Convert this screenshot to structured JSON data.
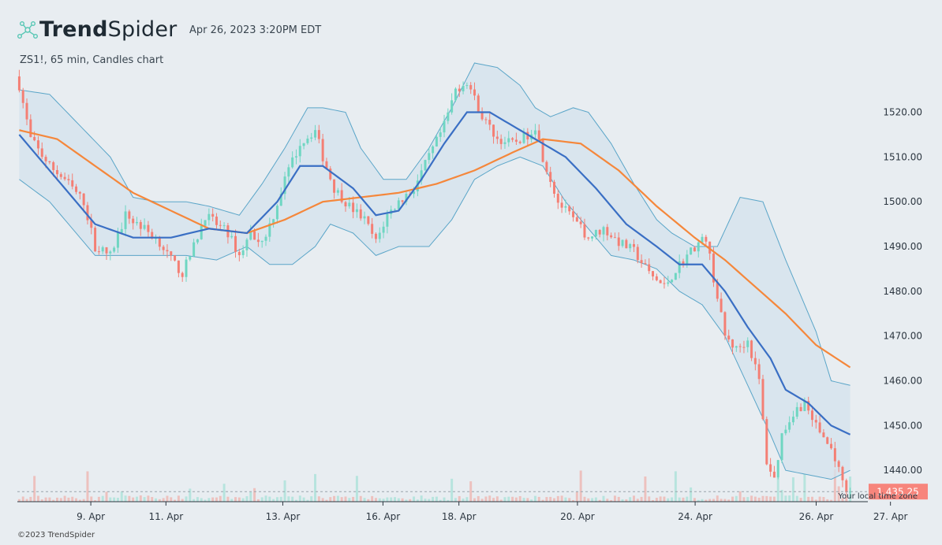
{
  "header": {
    "brand_bold": "Trend",
    "brand_regular": "Spider",
    "datetime": "Apr 26, 2023 3:20PM EDT",
    "symbol_line": "ZS1!, 65 min, Candles chart"
  },
  "footer": {
    "copyright": "©2023 TrendSpider"
  },
  "chart_data": {
    "type": "candlestick",
    "title": "ZS1!, 65 min, Candles chart",
    "x_tick_labels": [
      "9. Apr",
      "11. Apr",
      "13. Apr",
      "16. Apr",
      "18. Apr",
      "20. Apr",
      "24. Apr",
      "26. Apr",
      "27. Apr"
    ],
    "y_tick_labels": [
      "1520.00",
      "1510.00",
      "1500.00",
      "1490.00",
      "1480.00",
      "1470.00",
      "1460.00",
      "1450.00",
      "1440.00"
    ],
    "y_ticks": [
      1520,
      1510,
      1500,
      1490,
      1480,
      1470,
      1460,
      1450,
      1440
    ],
    "ylim": [
      1433,
      1531
    ],
    "last_price": 1435.25,
    "last_price_label": "1,435.25",
    "timezone_note": "Your local time zone",
    "colors": {
      "up": "#6fd6c2",
      "down": "#f47f74",
      "ma_fast": "#3a6fc4",
      "ma_slow": "#f5873b",
      "band": "#5aa5c8",
      "band_fill": "#d4e2ec",
      "price_tag": "#f7857c"
    },
    "close_path": [
      [
        0,
        1526
      ],
      [
        3,
        1514
      ],
      [
        8,
        1508
      ],
      [
        12,
        1505
      ],
      [
        17,
        1500
      ],
      [
        20,
        1490
      ],
      [
        24,
        1488
      ],
      [
        28,
        1497
      ],
      [
        33,
        1494
      ],
      [
        37,
        1491
      ],
      [
        40,
        1487
      ],
      [
        43,
        1484
      ],
      [
        46,
        1490
      ],
      [
        49,
        1497
      ],
      [
        52,
        1495
      ],
      [
        55,
        1493
      ],
      [
        58,
        1488
      ],
      [
        61,
        1493
      ],
      [
        64,
        1491
      ],
      [
        67,
        1497
      ],
      [
        70,
        1505
      ],
      [
        74,
        1513
      ],
      [
        78,
        1516
      ],
      [
        80,
        1510
      ],
      [
        83,
        1503
      ],
      [
        87,
        1499
      ],
      [
        91,
        1496
      ],
      [
        94,
        1491
      ],
      [
        97,
        1497
      ],
      [
        100,
        1500
      ],
      [
        104,
        1503
      ],
      [
        108,
        1510
      ],
      [
        112,
        1517
      ],
      [
        115,
        1525
      ],
      [
        118,
        1527
      ],
      [
        122,
        1519
      ],
      [
        126,
        1514
      ],
      [
        130,
        1513
      ],
      [
        134,
        1515
      ],
      [
        136,
        1517
      ],
      [
        138,
        1510
      ],
      [
        142,
        1500
      ],
      [
        146,
        1496
      ],
      [
        150,
        1492
      ],
      [
        154,
        1494
      ],
      [
        158,
        1491
      ],
      [
        162,
        1489
      ],
      [
        166,
        1484
      ],
      [
        170,
        1481
      ],
      [
        174,
        1486
      ],
      [
        178,
        1490
      ],
      [
        181,
        1492
      ],
      [
        183,
        1483
      ],
      [
        186,
        1470
      ],
      [
        189,
        1467
      ],
      [
        192,
        1469
      ],
      [
        195,
        1460
      ],
      [
        197,
        1442
      ],
      [
        199,
        1438
      ],
      [
        201,
        1448
      ],
      [
        204,
        1453
      ],
      [
        207,
        1455
      ],
      [
        210,
        1450
      ],
      [
        213,
        1446
      ],
      [
        215,
        1443
      ],
      [
        217,
        1437
      ],
      [
        219,
        1435.25
      ]
    ],
    "ma_fast_path": [
      [
        0,
        1515
      ],
      [
        10,
        1505
      ],
      [
        20,
        1495
      ],
      [
        30,
        1492
      ],
      [
        40,
        1492
      ],
      [
        50,
        1494
      ],
      [
        60,
        1493
      ],
      [
        68,
        1500
      ],
      [
        74,
        1508
      ],
      [
        80,
        1508
      ],
      [
        88,
        1503
      ],
      [
        94,
        1497
      ],
      [
        100,
        1498
      ],
      [
        106,
        1505
      ],
      [
        112,
        1513
      ],
      [
        118,
        1520
      ],
      [
        124,
        1520
      ],
      [
        130,
        1517
      ],
      [
        136,
        1514
      ],
      [
        144,
        1510
      ],
      [
        152,
        1503
      ],
      [
        160,
        1495
      ],
      [
        168,
        1490
      ],
      [
        174,
        1486
      ],
      [
        180,
        1486
      ],
      [
        186,
        1480
      ],
      [
        192,
        1472
      ],
      [
        198,
        1465
      ],
      [
        202,
        1458
      ],
      [
        208,
        1455
      ],
      [
        214,
        1450
      ],
      [
        219,
        1448
      ]
    ],
    "ma_slow_path": [
      [
        0,
        1516
      ],
      [
        10,
        1514
      ],
      [
        20,
        1508
      ],
      [
        30,
        1502
      ],
      [
        40,
        1498
      ],
      [
        50,
        1494
      ],
      [
        60,
        1493
      ],
      [
        70,
        1496
      ],
      [
        80,
        1500
      ],
      [
        90,
        1501
      ],
      [
        100,
        1502
      ],
      [
        110,
        1504
      ],
      [
        120,
        1507
      ],
      [
        130,
        1511
      ],
      [
        138,
        1514
      ],
      [
        148,
        1513
      ],
      [
        158,
        1507
      ],
      [
        168,
        1499
      ],
      [
        178,
        1492
      ],
      [
        186,
        1487
      ],
      [
        194,
        1481
      ],
      [
        202,
        1475
      ],
      [
        210,
        1468
      ],
      [
        219,
        1463
      ]
    ],
    "band_upper_path": [
      [
        0,
        1525
      ],
      [
        8,
        1524
      ],
      [
        16,
        1517
      ],
      [
        24,
        1510
      ],
      [
        30,
        1501
      ],
      [
        36,
        1500
      ],
      [
        44,
        1500
      ],
      [
        50,
        1499
      ],
      [
        58,
        1497
      ],
      [
        64,
        1504
      ],
      [
        70,
        1512
      ],
      [
        76,
        1521
      ],
      [
        80,
        1521
      ],
      [
        86,
        1520
      ],
      [
        90,
        1512
      ],
      [
        96,
        1505
      ],
      [
        102,
        1505
      ],
      [
        108,
        1512
      ],
      [
        114,
        1521
      ],
      [
        120,
        1531
      ],
      [
        126,
        1530
      ],
      [
        132,
        1526
      ],
      [
        136,
        1521
      ],
      [
        140,
        1519
      ],
      [
        146,
        1521
      ],
      [
        150,
        1520
      ],
      [
        156,
        1513
      ],
      [
        162,
        1504
      ],
      [
        168,
        1496
      ],
      [
        172,
        1493
      ],
      [
        178,
        1490
      ],
      [
        184,
        1490
      ],
      [
        190,
        1501
      ],
      [
        196,
        1500
      ],
      [
        202,
        1487
      ],
      [
        206,
        1479
      ],
      [
        210,
        1471
      ],
      [
        214,
        1460
      ],
      [
        219,
        1459
      ]
    ],
    "band_lower_path": [
      [
        0,
        1505
      ],
      [
        8,
        1500
      ],
      [
        14,
        1494
      ],
      [
        20,
        1488
      ],
      [
        28,
        1488
      ],
      [
        36,
        1488
      ],
      [
        44,
        1488
      ],
      [
        52,
        1487
      ],
      [
        60,
        1490
      ],
      [
        66,
        1486
      ],
      [
        72,
        1486
      ],
      [
        78,
        1490
      ],
      [
        82,
        1495
      ],
      [
        88,
        1493
      ],
      [
        94,
        1488
      ],
      [
        100,
        1490
      ],
      [
        108,
        1490
      ],
      [
        114,
        1496
      ],
      [
        120,
        1505
      ],
      [
        126,
        1508
      ],
      [
        132,
        1510
      ],
      [
        138,
        1508
      ],
      [
        144,
        1500
      ],
      [
        150,
        1494
      ],
      [
        156,
        1488
      ],
      [
        162,
        1487
      ],
      [
        168,
        1485
      ],
      [
        174,
        1480
      ],
      [
        180,
        1477
      ],
      [
        186,
        1470
      ],
      [
        192,
        1459
      ],
      [
        198,
        1448
      ],
      [
        202,
        1440
      ],
      [
        208,
        1439
      ],
      [
        214,
        1438
      ],
      [
        219,
        1440
      ]
    ]
  }
}
